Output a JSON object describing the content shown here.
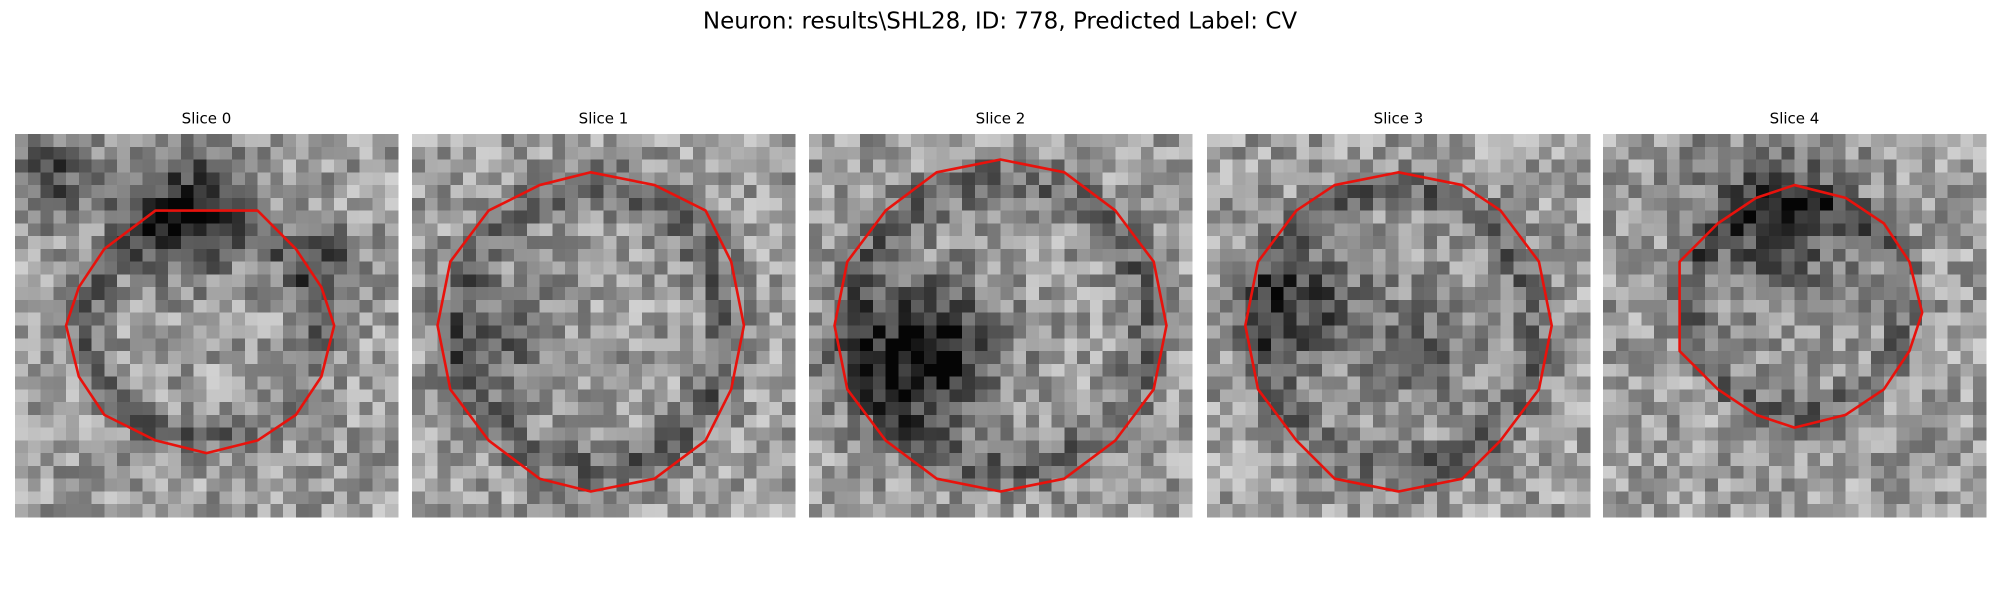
{
  "title": "Neuron: results\\SHL28, ID: 778, Predicted Label: CV",
  "panels": [
    {
      "label": "Slice 0"
    },
    {
      "label": "Slice 1"
    },
    {
      "label": "Slice 2"
    },
    {
      "label": "Slice 3"
    },
    {
      "label": "Slice 4"
    }
  ]
}
